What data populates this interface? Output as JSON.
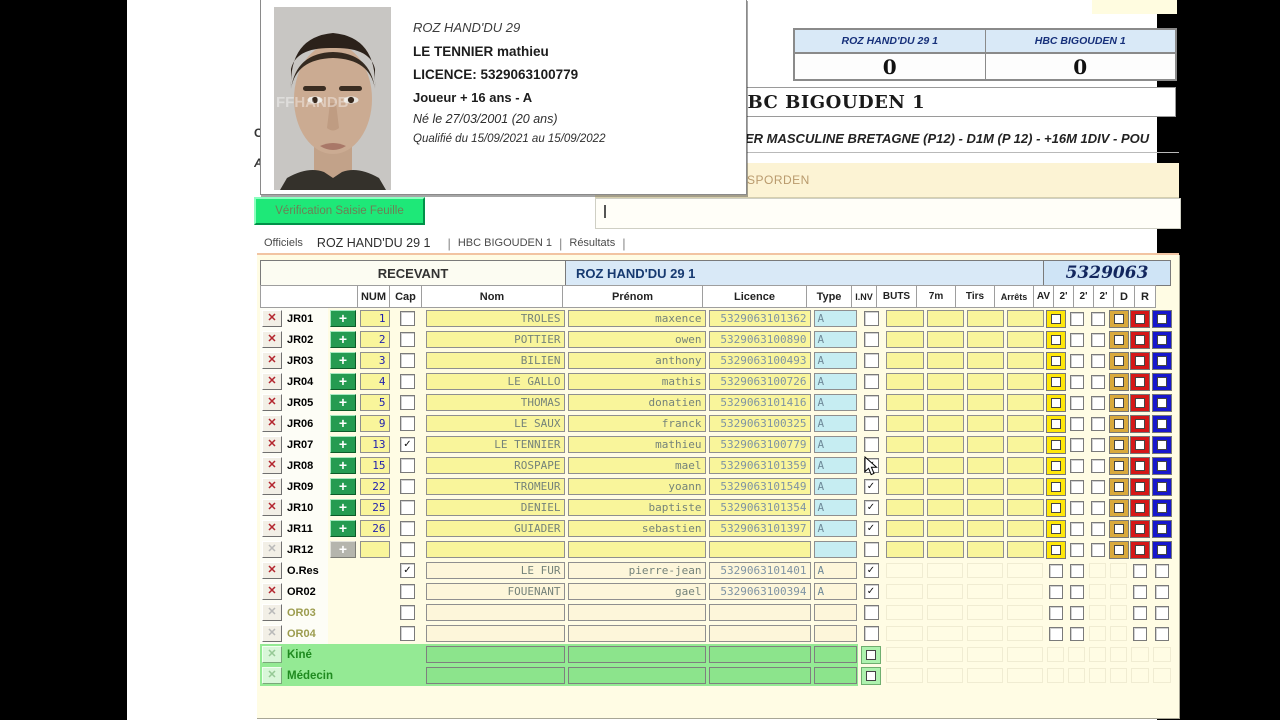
{
  "scoreboard": {
    "home": {
      "name": "ROZ HAND'DU 29 1",
      "score": "0"
    },
    "away": {
      "name": "HBC BIGOUDEN 1",
      "score": "0"
    }
  },
  "match": {
    "title": "HBC BIGOUDEN 1",
    "competition": "ER MASCULINE BRETAGNE (P12) - D1M (P 12) - +16M 1DIV - POU",
    "venue": "SPORDEN"
  },
  "player_card": {
    "club": "ROZ HAND'DU 29",
    "name": "LE TENNIER mathieu",
    "licence": "LICENCE: 5329063100779",
    "category": "Joueur + 16 ans  -  A",
    "birth": "Né le 27/03/2001  (20 ans)",
    "qualification": "Qualifié du 15/09/2021 au 15/09/2022",
    "photo": "player-portrait"
  },
  "toolbar": {
    "verify_button": "Vérification Saisie Feuille"
  },
  "tabs": {
    "items": [
      "Officiels",
      "ROZ HAND'DU 29 1",
      "HBC BIGOUDEN 1",
      "Résultats"
    ],
    "active": "ROZ HAND'DU 29 1"
  },
  "fragments": {
    "edge_letters": [
      "C",
      "A"
    ]
  },
  "table": {
    "header": {
      "recevant": "RECEVANT",
      "team": "ROZ HAND'DU 29 1",
      "club_code": "5329063"
    },
    "columns": [
      "NUM",
      "Cap",
      "Nom",
      "Prénom",
      "Licence",
      "Type",
      "I.NV",
      "BUTS",
      "7m",
      "Tirs",
      "Arrêts",
      "AV",
      "2'",
      "2'",
      "2'",
      "D",
      "R"
    ],
    "rows": [
      {
        "label": "JR01",
        "kind": "player",
        "num": "1",
        "cap": false,
        "nom": "TROLES",
        "prenom": "maxence",
        "licence": "5329063101362",
        "type": "A",
        "inv": false
      },
      {
        "label": "JR02",
        "kind": "player",
        "num": "2",
        "cap": false,
        "nom": "POTTIER",
        "prenom": "owen",
        "licence": "5329063100890",
        "type": "A",
        "inv": false
      },
      {
        "label": "JR03",
        "kind": "player",
        "num": "3",
        "cap": false,
        "nom": "BILIEN",
        "prenom": "anthony",
        "licence": "5329063100493",
        "type": "A",
        "inv": false
      },
      {
        "label": "JR04",
        "kind": "player",
        "num": "4",
        "cap": false,
        "nom": "LE GALLO",
        "prenom": "mathis",
        "licence": "5329063100726",
        "type": "A",
        "inv": false
      },
      {
        "label": "JR05",
        "kind": "player",
        "num": "5",
        "cap": false,
        "nom": "THOMAS",
        "prenom": "donatien",
        "licence": "5329063101416",
        "type": "A",
        "inv": false
      },
      {
        "label": "JR06",
        "kind": "player",
        "num": "9",
        "cap": false,
        "nom": "LE SAUX",
        "prenom": "franck",
        "licence": "5329063100325",
        "type": "A",
        "inv": false
      },
      {
        "label": "JR07",
        "kind": "player",
        "num": "13",
        "cap": true,
        "nom": "LE TENNIER",
        "prenom": "mathieu",
        "licence": "5329063100779",
        "type": "A",
        "inv": false
      },
      {
        "label": "JR08",
        "kind": "player",
        "num": "15",
        "cap": false,
        "nom": "ROSPAPE",
        "prenom": "mael",
        "licence": "5329063101359",
        "type": "A",
        "inv": true,
        "cursor": true
      },
      {
        "label": "JR09",
        "kind": "player",
        "num": "22",
        "cap": false,
        "nom": "TROMEUR",
        "prenom": "yoann",
        "licence": "5329063101549",
        "type": "A",
        "inv": true
      },
      {
        "label": "JR10",
        "kind": "player",
        "num": "25",
        "cap": false,
        "nom": "DENIEL",
        "prenom": "baptiste",
        "licence": "5329063101354",
        "type": "A",
        "inv": true
      },
      {
        "label": "JR11",
        "kind": "player",
        "num": "26",
        "cap": false,
        "nom": "GUIADER",
        "prenom": "sebastien",
        "licence": "5329063101397",
        "type": "A",
        "inv": true
      },
      {
        "label": "JR12",
        "kind": "player-empty",
        "num": "",
        "cap": false,
        "nom": "",
        "prenom": "",
        "licence": "",
        "type": "",
        "inv": false
      },
      {
        "label": "O.Res",
        "kind": "official",
        "num": "",
        "cap": true,
        "nom": "LE FUR",
        "prenom": "pierre-jean",
        "licence": "5329063101401",
        "type": "A",
        "inv": true
      },
      {
        "label": "OR02",
        "kind": "official",
        "num": "",
        "cap": false,
        "nom": "FOUENANT",
        "prenom": "gael",
        "licence": "5329063100394",
        "type": "A",
        "inv": true
      },
      {
        "label": "OR03",
        "kind": "official-empty",
        "num": "",
        "cap": false,
        "nom": "",
        "prenom": "",
        "licence": "",
        "type": "",
        "inv": false
      },
      {
        "label": "OR04",
        "kind": "official-empty",
        "num": "",
        "cap": false,
        "nom": "",
        "prenom": "",
        "licence": "",
        "type": "",
        "inv": false
      },
      {
        "label": "Kiné",
        "kind": "staff",
        "inv": false
      },
      {
        "label": "Médecin",
        "kind": "staff",
        "inv": false
      }
    ]
  },
  "colors": {
    "accent_green": "#1ee878",
    "team_header_blue": "#d9e9f7",
    "row_yellow": "#f9f59b",
    "type_cyan": "#c6edf2",
    "staff_green": "#94ea94",
    "penalty_av_yellow": "#ffe70a",
    "penalty_2min_tan": "#d9a93c",
    "disqualification_red": "#d51717",
    "report_blue": "#1717cc"
  }
}
